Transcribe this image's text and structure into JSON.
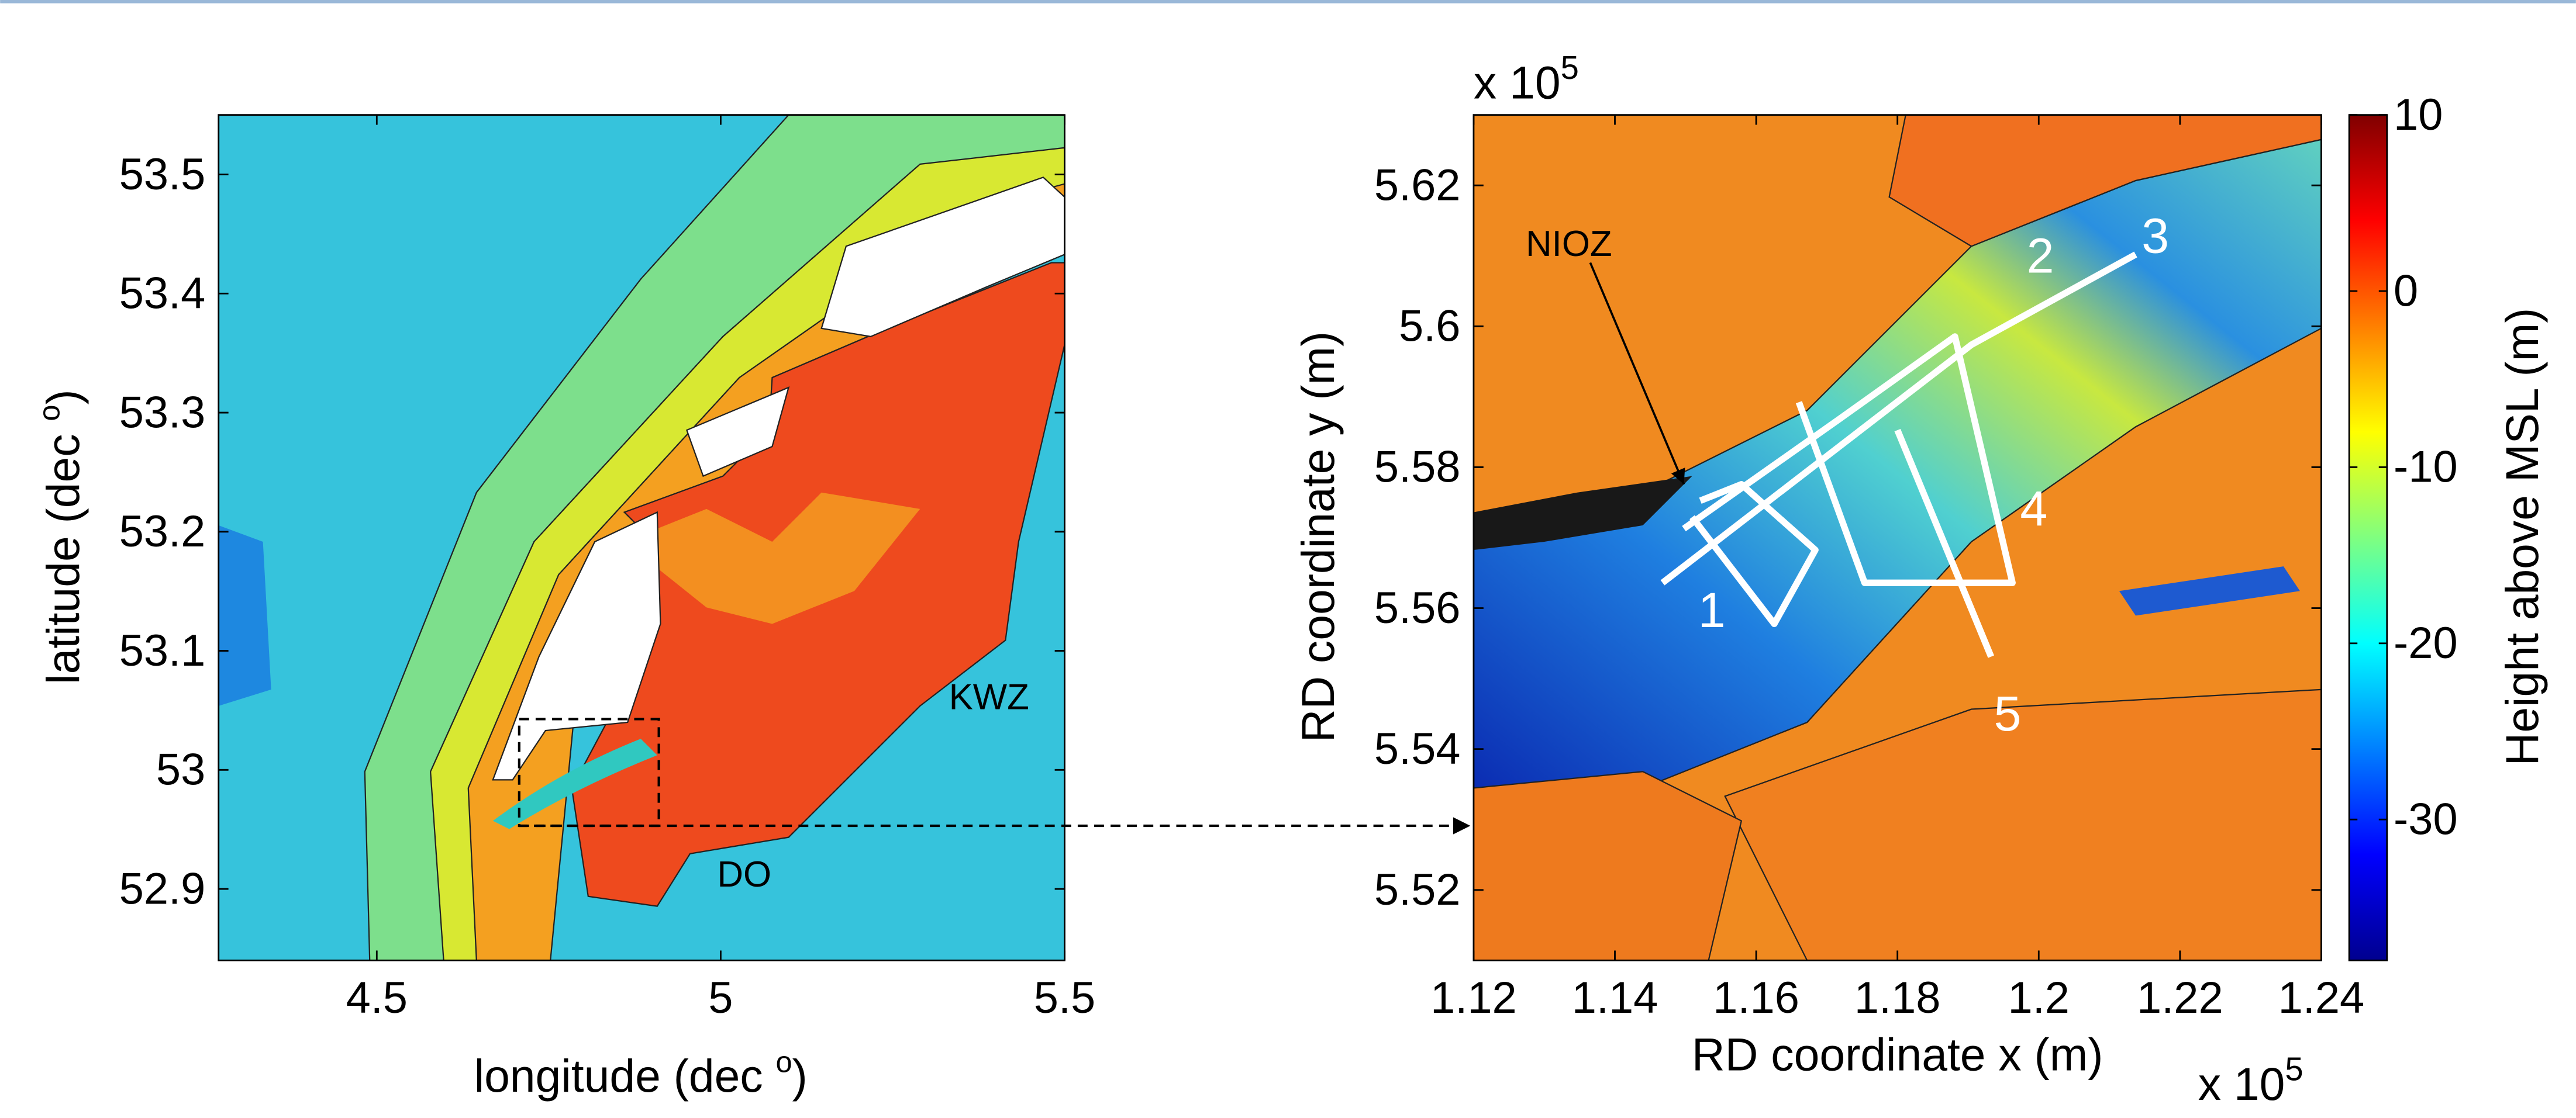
{
  "chart_data": [
    {
      "type": "contour",
      "xlabel": [
        "longitude (dec ",
        "o",
        ")"
      ],
      "ylabel": [
        "latitude (dec ",
        "o",
        ")"
      ],
      "xlim": [
        4.27,
        5.5
      ],
      "ylim": [
        52.84,
        53.55
      ],
      "xticks": [
        4.5,
        5,
        5.5
      ],
      "yticks": [
        52.9,
        53,
        53.1,
        53.2,
        53.3,
        53.4,
        53.5
      ],
      "annotations": [
        "KWZ",
        "DO"
      ]
    },
    {
      "type": "contour",
      "xlabel": "RD coordinate x (m)",
      "ylabel": "RD coordinate y (m)",
      "x_multiplier": [
        "x 10",
        "5"
      ],
      "y_multiplier": [
        "x 10",
        "5"
      ],
      "xlim": [
        1.12,
        1.24
      ],
      "ylim": [
        5.51,
        5.63
      ],
      "xticks": [
        1.12,
        1.14,
        1.16,
        1.18,
        1.2,
        1.22,
        1.24
      ],
      "yticks": [
        5.52,
        5.54,
        5.56,
        5.58,
        5.6,
        5.62
      ],
      "annotations": [
        "NIOZ",
        "1",
        "2",
        "3",
        "4",
        "5"
      ],
      "colorbar": {
        "label": "Height above MSL (m)",
        "clim": [
          -38,
          10
        ],
        "ticks": [
          -30,
          -20,
          -10,
          0,
          10
        ],
        "colormap": "jet"
      }
    }
  ]
}
